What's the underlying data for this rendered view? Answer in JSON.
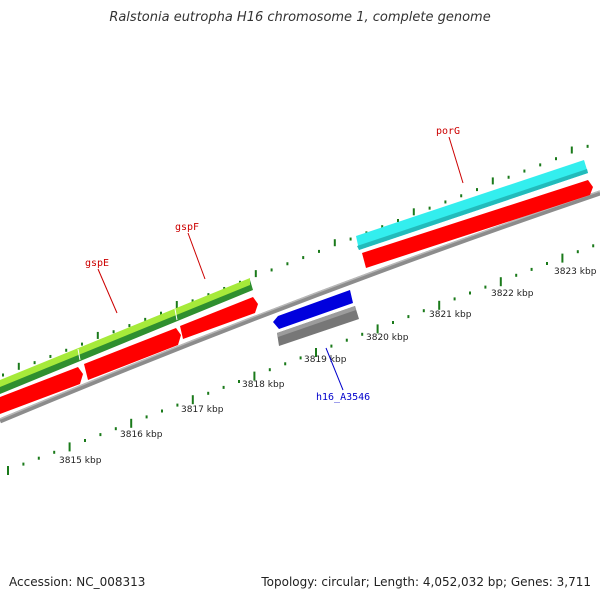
{
  "title": "Ralstonia eutropha H16 chromosome 1, complete genome",
  "footer": {
    "accession": "Accession: NC_008313",
    "summary": "Topology: circular; Length: 4,052,032 bp; Genes: 3,711"
  },
  "colors": {
    "cds_forward": "#ff0000",
    "cds_reverse": "#0000dd",
    "gene_feature": "#777777",
    "backbone": "#8c8c8c",
    "tick": "#1a7a1a",
    "label_forward": "#cc0000",
    "label_reverse": "#0000cc",
    "green_light": "#a6ea3a",
    "green_dark": "#2f8f2f",
    "cyan": "#33eeee"
  },
  "scale": {
    "unit": "kbp",
    "labels": [
      {
        "kbp": 3815,
        "text": "3815 kbp"
      },
      {
        "kbp": 3816,
        "text": "3816 kbp"
      },
      {
        "kbp": 3817,
        "text": "3817 kbp"
      },
      {
        "kbp": 3818,
        "text": "3818 kbp"
      },
      {
        "kbp": 3819,
        "text": "3819 kbp"
      },
      {
        "kbp": 3820,
        "text": "3820 kbp"
      },
      {
        "kbp": 3821,
        "text": "3821 kbp"
      },
      {
        "kbp": 3822,
        "text": "3822 kbp"
      },
      {
        "kbp": 3823,
        "text": "3823 kbp"
      }
    ]
  },
  "gene_labels": [
    {
      "text": "gspE",
      "strand": "forward"
    },
    {
      "text": "gspF",
      "strand": "forward"
    },
    {
      "text": "porG",
      "strand": "forward"
    },
    {
      "text": "h16_A3546",
      "strand": "reverse"
    }
  ]
}
